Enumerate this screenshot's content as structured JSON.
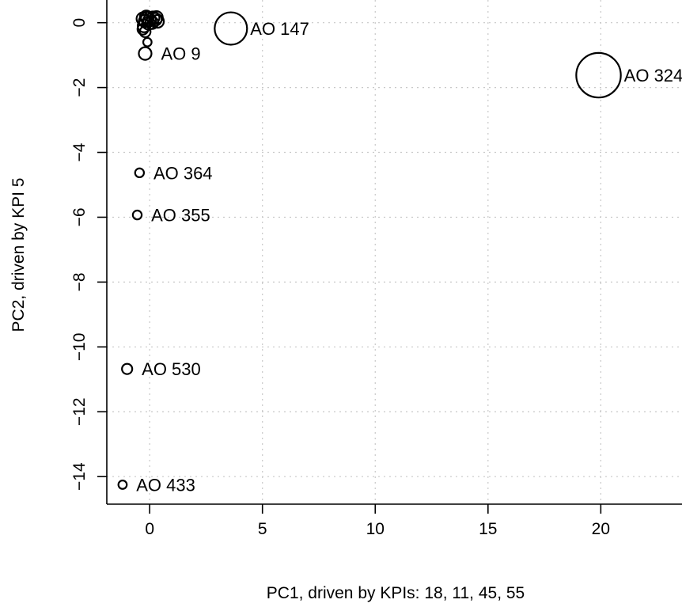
{
  "chart_data": {
    "type": "scatter",
    "xlabel": "PC1, driven by KPIs: 18, 11, 45, 55",
    "ylabel": "PC2, driven by KPI 5",
    "xlim": [
      -1.9,
      23.6
    ],
    "ylim": [
      -14.85,
      0.7
    ],
    "x_ticks": [
      "0",
      "5",
      "10",
      "15",
      "20"
    ],
    "x_tick_values": [
      0,
      5,
      10,
      15,
      20
    ],
    "y_ticks": [
      "0",
      "−2",
      "−4",
      "−6",
      "−8",
      "−10",
      "−12",
      "−14"
    ],
    "y_tick_values": [
      0,
      -2,
      -4,
      -6,
      -8,
      -10,
      -12,
      -14
    ],
    "grid": true,
    "marker": "open-circle",
    "points": [
      {
        "label": "AO 147",
        "x": 3.6,
        "y": -0.18,
        "size": 1.8
      },
      {
        "label": "AO 324",
        "x": 19.9,
        "y": -1.62,
        "size": 2.6
      },
      {
        "label": "AO 9",
        "x": -0.2,
        "y": -0.95,
        "size": 1.0
      },
      {
        "label": "AO 364",
        "x": -0.45,
        "y": -4.63,
        "size": 0.6
      },
      {
        "label": "AO 355",
        "x": -0.55,
        "y": -5.93,
        "size": 0.6
      },
      {
        "label": "AO 530",
        "x": -1.0,
        "y": -10.68,
        "size": 0.75
      },
      {
        "label": "AO 433",
        "x": -1.2,
        "y": -14.25,
        "size": 0.55
      }
    ],
    "cluster": [
      {
        "x": -0.3,
        "y": 0.12,
        "size": 1.0
      },
      {
        "x": -0.2,
        "y": 0.05,
        "size": 1.0
      },
      {
        "x": -0.1,
        "y": 0.14,
        "size": 1.0
      },
      {
        "x": 0.0,
        "y": 0.08,
        "size": 1.0
      },
      {
        "x": 0.1,
        "y": 0.0,
        "size": 1.0
      },
      {
        "x": 0.25,
        "y": 0.1,
        "size": 1.0
      },
      {
        "x": 0.35,
        "y": 0.04,
        "size": 1.0
      },
      {
        "x": -0.05,
        "y": -0.02,
        "size": 1.0
      },
      {
        "x": 0.15,
        "y": 0.15,
        "size": 1.0
      },
      {
        "x": -0.25,
        "y": -0.1,
        "size": 1.0
      },
      {
        "x": -0.3,
        "y": -0.2,
        "size": 0.8
      },
      {
        "x": -0.2,
        "y": -0.28,
        "size": 0.8
      },
      {
        "x": -0.1,
        "y": -0.6,
        "size": 0.55
      },
      {
        "x": 0.3,
        "y": 0.16,
        "size": 1.0
      },
      {
        "x": -0.15,
        "y": 0.18,
        "size": 1.0
      }
    ]
  }
}
